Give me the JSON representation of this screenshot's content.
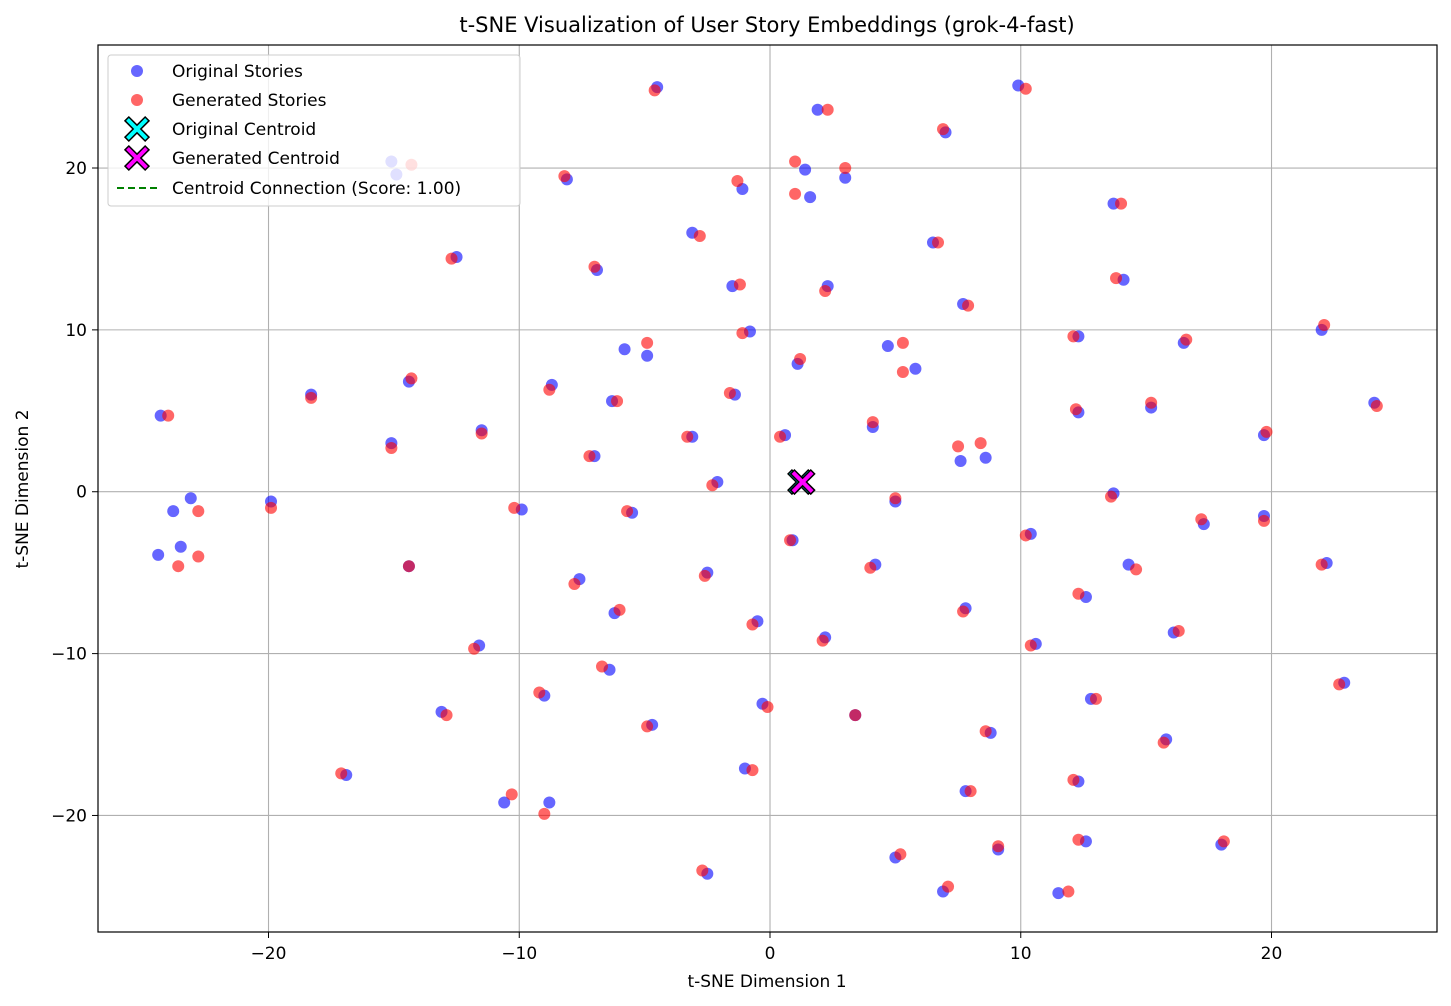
{
  "chart_data": {
    "type": "scatter",
    "title": "t-SNE Visualization of User Story Embeddings (grok-4-fast)",
    "xlabel": "t-SNE Dimension 1",
    "ylabel": "t-SNE Dimension 2",
    "xlim": [
      -26.8,
      26.6
    ],
    "ylim": [
      -27.2,
      27.6
    ],
    "xticks": [
      -20,
      -10,
      0,
      10,
      20
    ],
    "yticks": [
      -20,
      -10,
      0,
      10,
      20
    ],
    "xtick_labels": [
      "−20",
      "−10",
      "0",
      "10",
      "20"
    ],
    "ytick_labels": [
      "−20",
      "−10",
      "0",
      "10",
      "20"
    ],
    "grid": true,
    "legend_position": "top-left",
    "colors": {
      "original": "#0000ff",
      "generated": "#ff0000",
      "original_centroid": "#00ffff",
      "generated_centroid": "#ff00ff",
      "connection": "#008000"
    },
    "legend": [
      {
        "label": "Original Stories",
        "marker": "circle",
        "color": "#0000ff"
      },
      {
        "label": "Generated Stories",
        "marker": "circle",
        "color": "#ff0000"
      },
      {
        "label": "Original Centroid",
        "marker": "x",
        "color": "#00ffff"
      },
      {
        "label": "Generated Centroid",
        "marker": "x",
        "color": "#ff00ff"
      },
      {
        "label": "Centroid Connection (Score: 1.00)",
        "marker": "dashed-line",
        "color": "#008000"
      }
    ],
    "series": [
      {
        "name": "Original Stories",
        "points": [
          [
            -15.1,
            20.4
          ],
          [
            -14.9,
            19.6
          ],
          [
            -12.5,
            14.5
          ],
          [
            -18.3,
            6.0
          ],
          [
            -14.4,
            6.8
          ],
          [
            -15.1,
            3.0
          ],
          [
            -11.5,
            3.8
          ],
          [
            -24.3,
            4.7
          ],
          [
            -23.8,
            -1.2
          ],
          [
            -23.1,
            -0.4
          ],
          [
            -23.5,
            -3.4
          ],
          [
            -24.4,
            -3.9
          ],
          [
            -19.9,
            -0.6
          ],
          [
            -14.4,
            -4.6
          ],
          [
            -11.6,
            -9.5
          ],
          [
            -13.1,
            -13.6
          ],
          [
            -16.9,
            -17.5
          ],
          [
            -10.6,
            -19.2
          ],
          [
            -9.0,
            -12.6
          ],
          [
            -8.8,
            -19.2
          ],
          [
            -9.9,
            -1.1
          ],
          [
            -8.7,
            6.6
          ],
          [
            -8.1,
            19.3
          ],
          [
            -6.9,
            13.7
          ],
          [
            -5.8,
            8.8
          ],
          [
            -4.9,
            8.4
          ],
          [
            -6.3,
            5.6
          ],
          [
            -7.0,
            2.2
          ],
          [
            -5.5,
            -1.3
          ],
          [
            -7.6,
            -5.4
          ],
          [
            -6.2,
            -7.5
          ],
          [
            -6.4,
            -11.0
          ],
          [
            -4.7,
            -14.4
          ],
          [
            -4.5,
            25.0
          ],
          [
            -3.1,
            16.0
          ],
          [
            -3.1,
            3.4
          ],
          [
            -2.1,
            0.6
          ],
          [
            -2.5,
            -5.0
          ],
          [
            -2.5,
            -23.6
          ],
          [
            -1.5,
            12.7
          ],
          [
            -1.4,
            6.0
          ],
          [
            -1.1,
            18.7
          ],
          [
            -0.8,
            9.9
          ],
          [
            -0.5,
            -8.0
          ],
          [
            -1.0,
            -17.1
          ],
          [
            -0.3,
            -13.1
          ],
          [
            0.6,
            3.5
          ],
          [
            0.9,
            -3.0
          ],
          [
            1.1,
            7.9
          ],
          [
            1.4,
            19.9
          ],
          [
            1.6,
            18.2
          ],
          [
            1.9,
            23.6
          ],
          [
            2.2,
            -9.0
          ],
          [
            2.3,
            12.7
          ],
          [
            3.4,
            -13.8
          ],
          [
            3.0,
            19.4
          ],
          [
            4.1,
            4.0
          ],
          [
            4.2,
            -4.5
          ],
          [
            4.7,
            9.0
          ],
          [
            5.0,
            -0.6
          ],
          [
            5.8,
            7.6
          ],
          [
            5.0,
            -22.6
          ],
          [
            6.5,
            15.4
          ],
          [
            6.9,
            -24.7
          ],
          [
            7.0,
            22.2
          ],
          [
            7.6,
            1.9
          ],
          [
            7.7,
            11.6
          ],
          [
            7.8,
            -7.2
          ],
          [
            7.8,
            -18.5
          ],
          [
            8.6,
            2.1
          ],
          [
            8.8,
            -14.9
          ],
          [
            9.1,
            -22.1
          ],
          [
            9.9,
            25.1
          ],
          [
            10.4,
            -2.6
          ],
          [
            10.6,
            -9.4
          ],
          [
            11.5,
            -24.8
          ],
          [
            12.3,
            9.6
          ],
          [
            12.3,
            4.9
          ],
          [
            12.6,
            -6.5
          ],
          [
            12.3,
            -17.9
          ],
          [
            12.6,
            -21.6
          ],
          [
            12.8,
            -12.8
          ],
          [
            13.7,
            17.8
          ],
          [
            14.1,
            13.1
          ],
          [
            13.7,
            -0.1
          ],
          [
            14.3,
            -4.5
          ],
          [
            15.2,
            5.2
          ],
          [
            15.8,
            -15.3
          ],
          [
            16.1,
            -8.7
          ],
          [
            16.5,
            9.2
          ],
          [
            17.3,
            -2.0
          ],
          [
            18.0,
            -21.8
          ],
          [
            19.7,
            3.5
          ],
          [
            19.7,
            -1.5
          ],
          [
            22.0,
            10.0
          ],
          [
            22.2,
            -4.4
          ],
          [
            22.9,
            -11.8
          ],
          [
            24.1,
            5.5
          ]
        ]
      },
      {
        "name": "Generated Stories",
        "points": [
          [
            -14.3,
            20.2
          ],
          [
            -12.7,
            14.4
          ],
          [
            -18.3,
            5.8
          ],
          [
            -14.3,
            7.0
          ],
          [
            -15.1,
            2.7
          ],
          [
            -11.5,
            3.6
          ],
          [
            -24.0,
            4.7
          ],
          [
            -22.8,
            -1.2
          ],
          [
            -23.6,
            -4.6
          ],
          [
            -22.8,
            -4.0
          ],
          [
            -19.9,
            -1.0
          ],
          [
            -14.4,
            -4.6
          ],
          [
            -11.8,
            -9.7
          ],
          [
            -12.9,
            -13.8
          ],
          [
            -17.1,
            -17.4
          ],
          [
            -10.3,
            -18.7
          ],
          [
            -9.2,
            -12.4
          ],
          [
            -9.0,
            -19.9
          ],
          [
            -10.2,
            -1.0
          ],
          [
            -8.8,
            6.3
          ],
          [
            -8.2,
            19.5
          ],
          [
            -7.0,
            13.9
          ],
          [
            -4.9,
            9.2
          ],
          [
            -6.1,
            5.6
          ],
          [
            -7.2,
            2.2
          ],
          [
            -5.7,
            -1.2
          ],
          [
            -7.8,
            -5.7
          ],
          [
            -6.0,
            -7.3
          ],
          [
            -6.7,
            -10.8
          ],
          [
            -4.9,
            -14.5
          ],
          [
            -4.6,
            24.8
          ],
          [
            -2.8,
            15.8
          ],
          [
            -3.3,
            3.4
          ],
          [
            -2.3,
            0.4
          ],
          [
            -2.6,
            -5.2
          ],
          [
            -2.7,
            -23.4
          ],
          [
            -1.2,
            12.8
          ],
          [
            -1.6,
            6.1
          ],
          [
            -1.3,
            19.2
          ],
          [
            -1.1,
            9.8
          ],
          [
            -0.7,
            -8.2
          ],
          [
            -0.7,
            -17.2
          ],
          [
            -0.1,
            -13.3
          ],
          [
            0.4,
            3.4
          ],
          [
            0.8,
            -3.0
          ],
          [
            1.2,
            8.2
          ],
          [
            1.0,
            20.4
          ],
          [
            1.0,
            18.4
          ],
          [
            2.3,
            23.6
          ],
          [
            2.1,
            -9.2
          ],
          [
            2.2,
            12.4
          ],
          [
            3.4,
            -13.8
          ],
          [
            3.0,
            20.0
          ],
          [
            4.1,
            4.3
          ],
          [
            4.0,
            -4.7
          ],
          [
            5.3,
            9.2
          ],
          [
            5.3,
            7.4
          ],
          [
            5.0,
            -0.4
          ],
          [
            5.2,
            -22.4
          ],
          [
            6.7,
            15.4
          ],
          [
            7.1,
            -24.4
          ],
          [
            6.9,
            22.4
          ],
          [
            7.5,
            2.8
          ],
          [
            7.9,
            11.5
          ],
          [
            7.7,
            -7.4
          ],
          [
            8.0,
            -18.5
          ],
          [
            8.4,
            3.0
          ],
          [
            8.6,
            -14.8
          ],
          [
            9.1,
            -21.9
          ],
          [
            10.2,
            24.9
          ],
          [
            10.2,
            -2.7
          ],
          [
            10.4,
            -9.5
          ],
          [
            11.9,
            -24.7
          ],
          [
            12.1,
            9.6
          ],
          [
            12.2,
            5.1
          ],
          [
            12.3,
            -6.3
          ],
          [
            12.1,
            -17.8
          ],
          [
            12.3,
            -21.5
          ],
          [
            13.0,
            -12.8
          ],
          [
            14.0,
            17.8
          ],
          [
            13.8,
            13.2
          ],
          [
            13.6,
            -0.3
          ],
          [
            14.6,
            -4.8
          ],
          [
            15.2,
            5.5
          ],
          [
            15.7,
            -15.5
          ],
          [
            16.3,
            -8.6
          ],
          [
            16.6,
            9.4
          ],
          [
            17.2,
            -1.7
          ],
          [
            18.1,
            -21.6
          ],
          [
            19.8,
            3.7
          ],
          [
            19.7,
            -1.8
          ],
          [
            22.1,
            10.3
          ],
          [
            22.0,
            -4.5
          ],
          [
            22.7,
            -11.9
          ],
          [
            24.2,
            5.3
          ]
        ]
      }
    ],
    "original_centroid": [
      1.2,
      0.6
    ],
    "generated_centroid": [
      1.3,
      0.6
    ]
  }
}
